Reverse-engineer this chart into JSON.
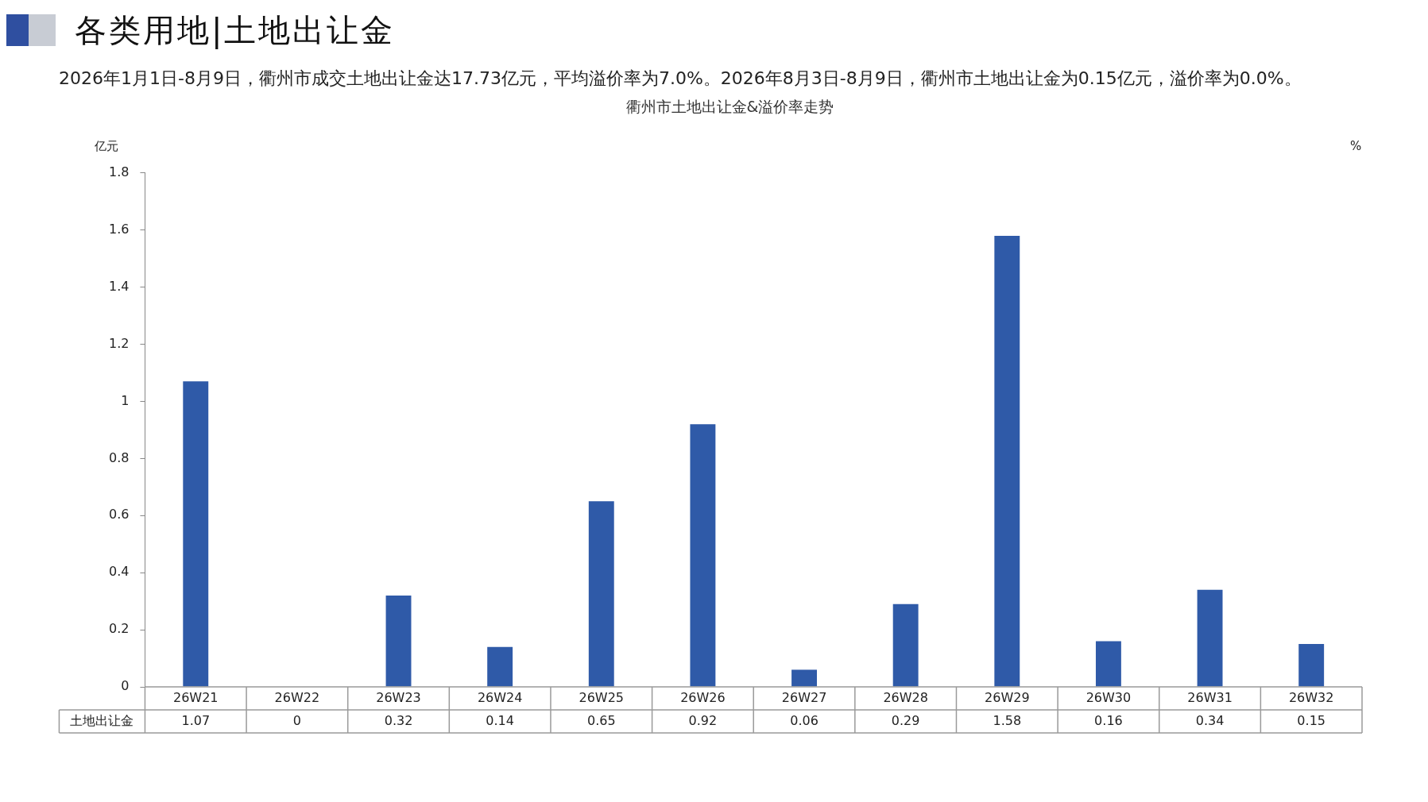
{
  "chart_data": {
    "type": "bar",
    "title": "衢州市土地出让金&溢价率走势",
    "ylabel": "亿元",
    "y2label": "%",
    "annotations": [
      "各类用地|土地出让金",
      "2026年1月1日-8月9日，衢州市成交土地出让金达17.73亿元，平均溢价率为7.0%。2026年8月3日-8月9日，衢州市土地出让金为0.15亿元，溢价率为0.0%。"
    ],
    "categories": [
      "26W21",
      "26W22",
      "26W23",
      "26W24",
      "26W25",
      "26W26",
      "26W27",
      "26W28",
      "26W29",
      "26W30",
      "26W31",
      "26W32"
    ],
    "series": [
      {
        "name": "土地出让金",
        "color": "#2f5aa8",
        "values": [
          1.07,
          0,
          0.32,
          0.14,
          0.65,
          0.92,
          0.06,
          0.29,
          1.58,
          0.16,
          0.34,
          0.15
        ]
      }
    ],
    "ylim": [
      0,
      1.8
    ],
    "yticks": [
      0,
      0.2,
      0.4,
      0.6,
      0.8,
      1,
      1.2,
      1.4,
      1.6,
      1.8
    ],
    "grid": false,
    "legend": false,
    "data_labels": true
  }
}
